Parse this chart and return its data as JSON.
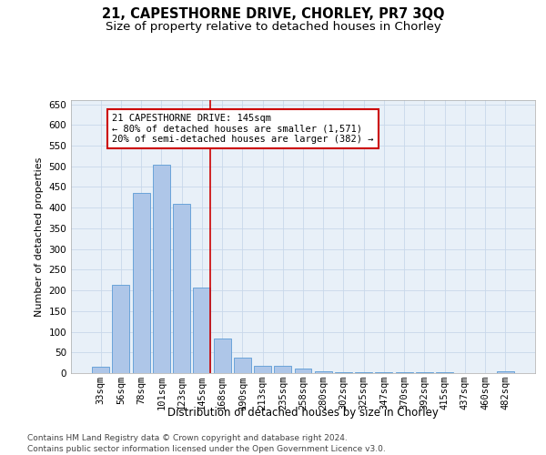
{
  "title": "21, CAPESTHORNE DRIVE, CHORLEY, PR7 3QQ",
  "subtitle": "Size of property relative to detached houses in Chorley",
  "xlabel": "Distribution of detached houses by size in Chorley",
  "ylabel": "Number of detached properties",
  "categories": [
    "33sqm",
    "56sqm",
    "78sqm",
    "101sqm",
    "123sqm",
    "145sqm",
    "168sqm",
    "190sqm",
    "213sqm",
    "235sqm",
    "258sqm",
    "280sqm",
    "302sqm",
    "325sqm",
    "347sqm",
    "370sqm",
    "392sqm",
    "415sqm",
    "437sqm",
    "460sqm",
    "482sqm"
  ],
  "values": [
    15,
    213,
    435,
    503,
    410,
    207,
    84,
    38,
    18,
    18,
    10,
    5,
    3,
    3,
    2,
    3,
    2,
    3,
    1,
    1,
    4
  ],
  "bar_color": "#aec6e8",
  "bar_edgecolor": "#5b9bd5",
  "redline_index": 5,
  "annotation_line1": "21 CAPESTHORNE DRIVE: 145sqm",
  "annotation_line2": "← 80% of detached houses are smaller (1,571)",
  "annotation_line3": "20% of semi-detached houses are larger (382) →",
  "annotation_box_facecolor": "#ffffff",
  "annotation_box_edgecolor": "#cc0000",
  "ylim": [
    0,
    660
  ],
  "yticks": [
    0,
    50,
    100,
    150,
    200,
    250,
    300,
    350,
    400,
    450,
    500,
    550,
    600,
    650
  ],
  "grid_color": "#c8d8ea",
  "background_color": "#e8f0f8",
  "footer_line1": "Contains HM Land Registry data © Crown copyright and database right 2024.",
  "footer_line2": "Contains public sector information licensed under the Open Government Licence v3.0.",
  "title_fontsize": 10.5,
  "subtitle_fontsize": 9.5,
  "xlabel_fontsize": 8.5,
  "ylabel_fontsize": 8,
  "tick_fontsize": 7.5,
  "annotation_fontsize": 7.5,
  "footer_fontsize": 6.5
}
